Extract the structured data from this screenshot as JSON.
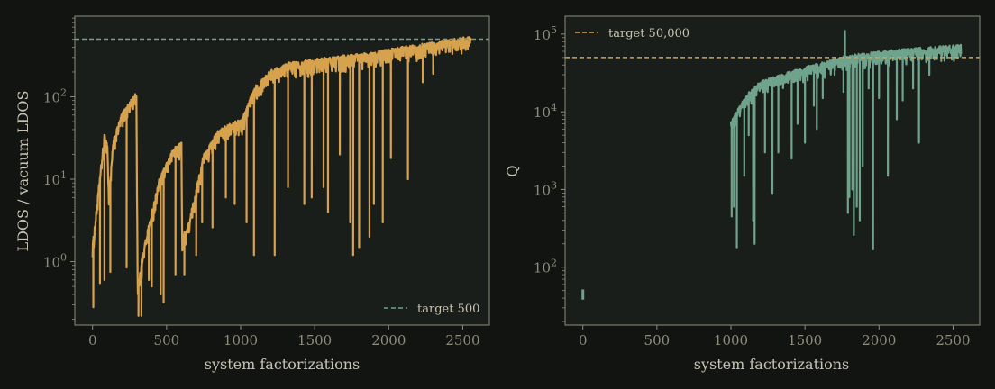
{
  "figure": {
    "background": "#121412",
    "axes_face": "#1a1e1a",
    "spine_color": "#8e8c7c",
    "text_color": "#c8c4b4",
    "tick_color": "#8e8c7c"
  },
  "chart_data": [
    {
      "type": "line",
      "title": "",
      "xlabel": "system factorizations",
      "ylabel": "LDOS / vacuum LDOS",
      "yscale": "log",
      "xlim": [
        -120,
        2680
      ],
      "ylim": [
        0.17,
        950
      ],
      "xticks": [
        0,
        500,
        1000,
        1500,
        2000,
        2500
      ],
      "xtick_labels": [
        "0",
        "500",
        "1000",
        "1500",
        "2000",
        "2500"
      ],
      "yticks": [
        1,
        10,
        100
      ],
      "ytick_labels": [
        "10^0",
        "10^1",
        "10^2"
      ],
      "grid": false,
      "legend": {
        "location": "lower-right",
        "entries": [
          "target 500"
        ]
      },
      "color": "#d6a24e",
      "reference_line": {
        "y": 500,
        "color": "#6fa38c",
        "style": "dashed",
        "label": "target 500"
      },
      "series": [
        {
          "upper_envelope": [
            [
              0,
              1.6
            ],
            [
              80,
              35
            ],
            [
              100,
              28
            ],
            [
              110,
              6
            ],
            [
              140,
              30
            ],
            [
              200,
              65
            ],
            [
              290,
              110
            ],
            [
              296,
              110
            ],
            [
              305,
              0.5
            ],
            [
              360,
              2
            ],
            [
              450,
              10
            ],
            [
              550,
              25
            ],
            [
              600,
              28
            ],
            [
              605,
              2
            ],
            [
              650,
              3
            ],
            [
              750,
              20
            ],
            [
              850,
              40
            ],
            [
              1000,
              55
            ],
            [
              1010,
              55
            ],
            [
              1040,
              75
            ],
            [
              1100,
              140
            ],
            [
              1200,
              210
            ],
            [
              1300,
              260
            ],
            [
              1500,
              290
            ],
            [
              1700,
              320
            ],
            [
              1900,
              350
            ],
            [
              2100,
              410
            ],
            [
              2300,
              460
            ],
            [
              2500,
              530
            ],
            [
              2555,
              530
            ]
          ],
          "dips": [
            [
              5,
              0.28
            ],
            [
              50,
              0.55
            ],
            [
              80,
              0.6
            ],
            [
              120,
              0.75
            ],
            [
              230,
              0.85
            ],
            [
              310,
              0.22
            ],
            [
              330,
              0.22
            ],
            [
              380,
              0.6
            ],
            [
              400,
              0.5
            ],
            [
              460,
              0.4
            ],
            [
              480,
              0.32
            ],
            [
              560,
              0.7
            ],
            [
              620,
              0.7
            ],
            [
              700,
              1.2
            ],
            [
              740,
              3
            ],
            [
              810,
              2.6
            ],
            [
              900,
              6
            ],
            [
              960,
              5
            ],
            [
              1040,
              3
            ],
            [
              1090,
              1.2
            ],
            [
              1230,
              1.2
            ],
            [
              1320,
              8
            ],
            [
              1430,
              5
            ],
            [
              1480,
              6
            ],
            [
              1560,
              8
            ],
            [
              1590,
              4
            ],
            [
              1670,
              20
            ],
            [
              1740,
              3
            ],
            [
              1760,
              1.2
            ],
            [
              1800,
              1.5
            ],
            [
              1870,
              2
            ],
            [
              1900,
              5
            ],
            [
              1960,
              3
            ],
            [
              2015,
              18
            ],
            [
              2130,
              10
            ],
            [
              2230,
              150
            ],
            [
              2300,
              190
            ],
            [
              2430,
              330
            ],
            [
              2520,
              370
            ]
          ]
        }
      ]
    },
    {
      "type": "line",
      "title": "",
      "xlabel": "system factorizations",
      "ylabel": "Q",
      "yscale": "log",
      "xlim": [
        -120,
        2680
      ],
      "ylim": [
        18,
        170000
      ],
      "xticks": [
        0,
        500,
        1000,
        1500,
        2000,
        2500
      ],
      "xtick_labels": [
        "0",
        "500",
        "1000",
        "1500",
        "2000",
        "2500"
      ],
      "yticks": [
        100,
        1000,
        10000,
        100000
      ],
      "ytick_labels": [
        "10^2",
        "10^3",
        "10^4",
        "10^5"
      ],
      "grid": false,
      "legend": {
        "location": "top-left",
        "entries": [
          "target 50,000"
        ]
      },
      "color": "#6fa38c",
      "reference_line": {
        "y": 50000,
        "color": "#d6a24e",
        "style": "dashed",
        "label": "target 50,000"
      },
      "series": [
        {
          "isolated_points": [
            [
              0,
              45
            ]
          ],
          "upper_envelope": [
            [
              1000,
              7500
            ],
            [
              1060,
              12000
            ],
            [
              1120,
              18000
            ],
            [
              1200,
              25000
            ],
            [
              1350,
              31000
            ],
            [
              1500,
              38000
            ],
            [
              1650,
              45000
            ],
            [
              1760,
              52000
            ],
            [
              1900,
              57000
            ],
            [
              2100,
              63000
            ],
            [
              2300,
              68000
            ],
            [
              2555,
              73000
            ]
          ],
          "dips": [
            [
              1005,
              450
            ],
            [
              1020,
              600
            ],
            [
              1040,
              180
            ],
            [
              1090,
              1500
            ],
            [
              1120,
              5000
            ],
            [
              1150,
              400
            ],
            [
              1160,
              200
            ],
            [
              1230,
              3000
            ],
            [
              1280,
              900
            ],
            [
              1320,
              3000
            ],
            [
              1410,
              2500
            ],
            [
              1450,
              7000
            ],
            [
              1500,
              4000
            ],
            [
              1560,
              12000
            ],
            [
              1580,
              6000
            ],
            [
              1620,
              15000
            ],
            [
              1700,
              30000
            ],
            [
              1760,
              18000
            ],
            [
              1790,
              500
            ],
            [
              1800,
              800
            ],
            [
              1820,
              1000
            ],
            [
              1830,
              260
            ],
            [
              1850,
              600
            ],
            [
              1870,
              400
            ],
            [
              1890,
              2000
            ],
            [
              1930,
              20000
            ],
            [
              1960,
              170
            ],
            [
              2000,
              15000
            ],
            [
              2060,
              1500
            ],
            [
              2120,
              8000
            ],
            [
              2160,
              14000
            ],
            [
              2230,
              20000
            ],
            [
              2270,
              4000
            ],
            [
              2340,
              30000
            ],
            [
              2420,
              45000
            ],
            [
              2460,
              50000
            ],
            [
              2520,
              55000
            ]
          ],
          "spike": [
            1770,
            110000
          ]
        }
      ]
    }
  ]
}
